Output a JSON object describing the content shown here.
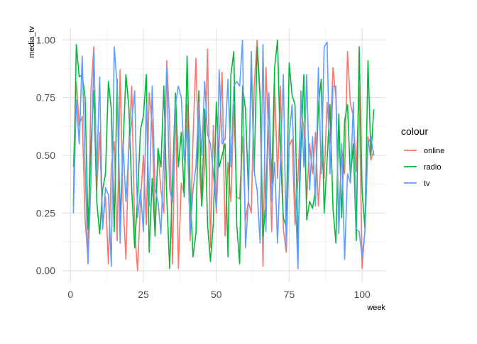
{
  "chart_data": {
    "type": "line",
    "title": "",
    "xlabel": "week",
    "ylabel": "media_tv",
    "xlim": [
      -3,
      108
    ],
    "ylim": [
      -0.05,
      1.05
    ],
    "x_ticks": [
      0,
      25,
      50,
      75,
      100
    ],
    "y_ticks": [
      0.0,
      0.25,
      0.5,
      0.75,
      1.0
    ],
    "y_tick_labels": [
      "0.00",
      "0.25",
      "0.50",
      "0.75",
      "1.00"
    ],
    "grid": true,
    "legend": {
      "title": "colour",
      "placement": "right"
    },
    "series": [
      {
        "name": "online",
        "color": "#F8766D",
        "x": [
          1,
          2,
          3,
          4,
          5,
          6,
          7,
          8,
          9,
          10,
          11,
          12,
          13,
          14,
          15,
          16,
          17,
          18,
          19,
          20,
          21,
          22,
          23,
          24,
          25,
          26,
          27,
          28,
          29,
          30,
          31,
          32,
          33,
          34,
          35,
          36,
          37,
          38,
          39,
          40,
          41,
          42,
          43,
          44,
          45,
          46,
          47,
          48,
          49,
          50,
          51,
          52,
          53,
          54,
          55,
          56,
          57,
          58,
          59,
          60,
          61,
          62,
          63,
          64,
          65,
          66,
          67,
          68,
          69,
          70,
          71,
          72,
          73,
          74,
          75,
          76,
          77,
          78,
          79,
          80,
          81,
          82,
          83,
          84,
          85,
          86,
          87,
          88,
          89,
          90,
          91,
          92,
          93,
          94,
          95,
          96,
          97,
          98,
          99,
          100,
          101,
          102,
          103,
          104
        ],
        "values": [
          0.45,
          0.82,
          0.63,
          0.67,
          0.22,
          0.05,
          0.78,
          0.97,
          0.35,
          0.6,
          0.18,
          0.32,
          0.03,
          0.45,
          0.56,
          0.13,
          0.87,
          0.3,
          0.05,
          0.55,
          0.8,
          0.18,
          0.0,
          0.3,
          0.5,
          0.2,
          0.77,
          0.63,
          0.18,
          0.52,
          0.35,
          0.25,
          0.91,
          0.65,
          0.03,
          0.75,
          0.01,
          0.38,
          0.33,
          0.72,
          0.13,
          0.57,
          0.92,
          0.48,
          0.28,
          0.45,
          0.96,
          0.1,
          0.63,
          0.25,
          0.55,
          0.86,
          0.15,
          0.47,
          0.3,
          0.72,
          0.32,
          0.31,
          0.58,
          0.22,
          0.3,
          0.25,
          0.8,
          1.0,
          0.77,
          0.02,
          0.88,
          0.57,
          0.17,
          0.81,
          0.4,
          0.8,
          0.18,
          0.08,
          0.54,
          0.57,
          0.2,
          0.4,
          0.7,
          0.62,
          0.31,
          0.55,
          0.42,
          0.6,
          0.28,
          0.5,
          0.4,
          0.73,
          0.55,
          0.88,
          0.75,
          0.22,
          0.53,
          0.42,
          0.95,
          0.72,
          0.67,
          0.43,
          0.8,
          0.01,
          0.18,
          0.58,
          0.48,
          0.52
        ]
      },
      {
        "name": "radio",
        "color": "#00BA38",
        "x": [
          1,
          2,
          3,
          4,
          5,
          6,
          7,
          8,
          9,
          10,
          11,
          12,
          13,
          14,
          15,
          16,
          17,
          18,
          19,
          20,
          21,
          22,
          23,
          24,
          25,
          26,
          27,
          28,
          29,
          30,
          31,
          32,
          33,
          34,
          35,
          36,
          37,
          38,
          39,
          40,
          41,
          42,
          43,
          44,
          45,
          46,
          47,
          48,
          49,
          50,
          51,
          52,
          53,
          54,
          55,
          56,
          57,
          58,
          59,
          60,
          61,
          62,
          63,
          64,
          65,
          66,
          67,
          68,
          69,
          70,
          71,
          72,
          73,
          74,
          75,
          76,
          77,
          78,
          79,
          80,
          81,
          82,
          83,
          84,
          85,
          86,
          87,
          88,
          89,
          90,
          91,
          92,
          93,
          94,
          95,
          96,
          97,
          98,
          99,
          100,
          101,
          102,
          103,
          104
        ],
        "values": [
          0.28,
          0.98,
          0.84,
          0.85,
          0.75,
          0.18,
          0.55,
          0.78,
          0.3,
          0.16,
          0.35,
          0.42,
          0.82,
          0.7,
          0.17,
          0.83,
          0.22,
          0.53,
          0.85,
          0.71,
          0.35,
          0.1,
          0.32,
          0.61,
          0.67,
          0.85,
          0.08,
          0.4,
          0.15,
          0.53,
          0.45,
          0.8,
          0.32,
          0.01,
          0.4,
          0.77,
          0.45,
          0.6,
          0.32,
          0.93,
          0.35,
          0.06,
          0.16,
          0.78,
          0.28,
          0.7,
          0.2,
          0.04,
          0.21,
          0.73,
          0.45,
          0.5,
          0.55,
          0.06,
          0.85,
          0.95,
          0.2,
          0.03,
          0.8,
          0.7,
          0.35,
          0.88,
          0.43,
          0.97,
          0.75,
          0.15,
          0.3,
          0.77,
          0.38,
          0.88,
          1.0,
          0.5,
          0.23,
          0.19,
          0.9,
          0.76,
          0.72,
          0.1,
          0.52,
          0.85,
          0.22,
          0.3,
          0.27,
          0.35,
          0.71,
          0.83,
          0.25,
          0.48,
          0.72,
          0.27,
          0.12,
          0.68,
          0.23,
          0.65,
          0.72,
          0.4,
          0.55,
          0.13,
          0.97,
          0.35,
          0.18,
          0.91,
          0.5,
          0.7
        ]
      },
      {
        "name": "tv",
        "color": "#619CFF",
        "x": [
          1,
          2,
          3,
          4,
          5,
          6,
          7,
          8,
          9,
          10,
          11,
          12,
          13,
          14,
          15,
          16,
          17,
          18,
          19,
          20,
          21,
          22,
          23,
          24,
          25,
          26,
          27,
          28,
          29,
          30,
          31,
          32,
          33,
          34,
          35,
          36,
          37,
          38,
          39,
          40,
          41,
          42,
          43,
          44,
          45,
          46,
          47,
          48,
          49,
          50,
          51,
          52,
          53,
          54,
          55,
          56,
          57,
          58,
          59,
          60,
          61,
          62,
          63,
          64,
          65,
          66,
          67,
          68,
          69,
          70,
          71,
          72,
          73,
          74,
          75,
          76,
          77,
          78,
          79,
          80,
          81,
          82,
          83,
          84,
          85,
          86,
          87,
          88,
          89,
          90,
          91,
          92,
          93,
          94,
          95,
          96,
          97,
          98,
          99,
          100,
          101,
          102,
          103,
          104
        ],
        "values": [
          0.25,
          0.74,
          0.55,
          0.93,
          0.45,
          0.03,
          0.38,
          0.95,
          0.42,
          0.84,
          0.18,
          0.36,
          0.33,
          0.02,
          0.97,
          0.8,
          0.12,
          0.55,
          0.3,
          0.53,
          0.65,
          0.78,
          0.23,
          0.35,
          0.17,
          0.72,
          0.28,
          0.8,
          0.35,
          0.3,
          0.16,
          0.5,
          0.88,
          0.35,
          0.3,
          0.72,
          0.8,
          0.75,
          0.48,
          0.62,
          0.16,
          0.35,
          0.45,
          0.73,
          0.5,
          0.82,
          0.59,
          0.55,
          0.42,
          0.27,
          0.87,
          0.55,
          0.57,
          0.83,
          0.45,
          0.8,
          0.82,
          0.8,
          1.0,
          0.1,
          0.3,
          0.95,
          0.43,
          0.35,
          0.12,
          0.98,
          0.17,
          0.77,
          0.3,
          0.47,
          0.12,
          0.48,
          0.85,
          0.1,
          0.58,
          0.72,
          0.35,
          0.01,
          0.78,
          0.45,
          0.85,
          0.35,
          0.58,
          0.28,
          0.88,
          0.42,
          0.97,
          0.99,
          0.42,
          0.8,
          0.8,
          0.16,
          0.55,
          0.05,
          0.42,
          0.38,
          0.73,
          0.18,
          0.17,
          0.06,
          0.17,
          0.55,
          0.58,
          0.5
        ]
      }
    ]
  }
}
